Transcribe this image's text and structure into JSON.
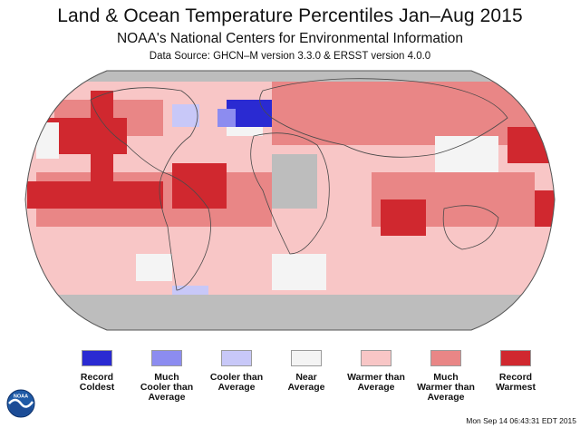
{
  "header": {
    "title": "Land & Ocean Temperature Percentiles Jan–Aug 2015",
    "subtitle": "NOAA's National Centers for Environmental Information",
    "source": "Data Source: GHCN–M version 3.3.0 & ERSST version 4.0.0"
  },
  "map": {
    "projection": "Robinson",
    "no_data_color": "#bdbdbd",
    "regions": [
      {
        "name": "north-pacific-record-warm",
        "category": "record_warmest"
      },
      {
        "name": "northeast-pacific-record-warm",
        "category": "record_warmest"
      },
      {
        "name": "north-atlantic-record-cold",
        "category": "record_coldest"
      },
      {
        "name": "north-atlantic-cooler",
        "category": "much_cooler"
      },
      {
        "name": "indian-ocean-record-warm",
        "category": "record_warmest"
      },
      {
        "name": "equatorial-pacific-record-warm",
        "category": "record_warmest"
      },
      {
        "name": "southern-ocean-no-data",
        "category": "no_data"
      },
      {
        "name": "africa-interior-no-data",
        "category": "no_data"
      },
      {
        "name": "antarctic-peninsula-cooler",
        "category": "cooler"
      }
    ]
  },
  "legend": {
    "items": [
      {
        "key": "record_coldest",
        "label1": "Record",
        "label2": "Coldest",
        "label3": "",
        "color": "#2a2ad2"
      },
      {
        "key": "much_cooler",
        "label1": "Much",
        "label2": "Cooler than",
        "label3": "Average",
        "color": "#8c8cf0"
      },
      {
        "key": "cooler",
        "label1": "Cooler than",
        "label2": "Average",
        "label3": "",
        "color": "#c8c8f8"
      },
      {
        "key": "near",
        "label1": "Near",
        "label2": "Average",
        "label3": "",
        "color": "#f4f4f4"
      },
      {
        "key": "warmer",
        "label1": "Warmer than",
        "label2": "Average",
        "label3": "",
        "color": "#f8c6c6"
      },
      {
        "key": "much_warmer",
        "label1": "Much",
        "label2": "Warmer than",
        "label3": "Average",
        "color": "#e98686"
      },
      {
        "key": "record_warmest",
        "label1": "Record",
        "label2": "Warmest",
        "label3": "",
        "color": "#d0282f"
      }
    ]
  },
  "logo": {
    "text": "NOAA"
  },
  "footer": {
    "timestamp": "Mon Sep 14 06:43:31 EDT 2015"
  }
}
